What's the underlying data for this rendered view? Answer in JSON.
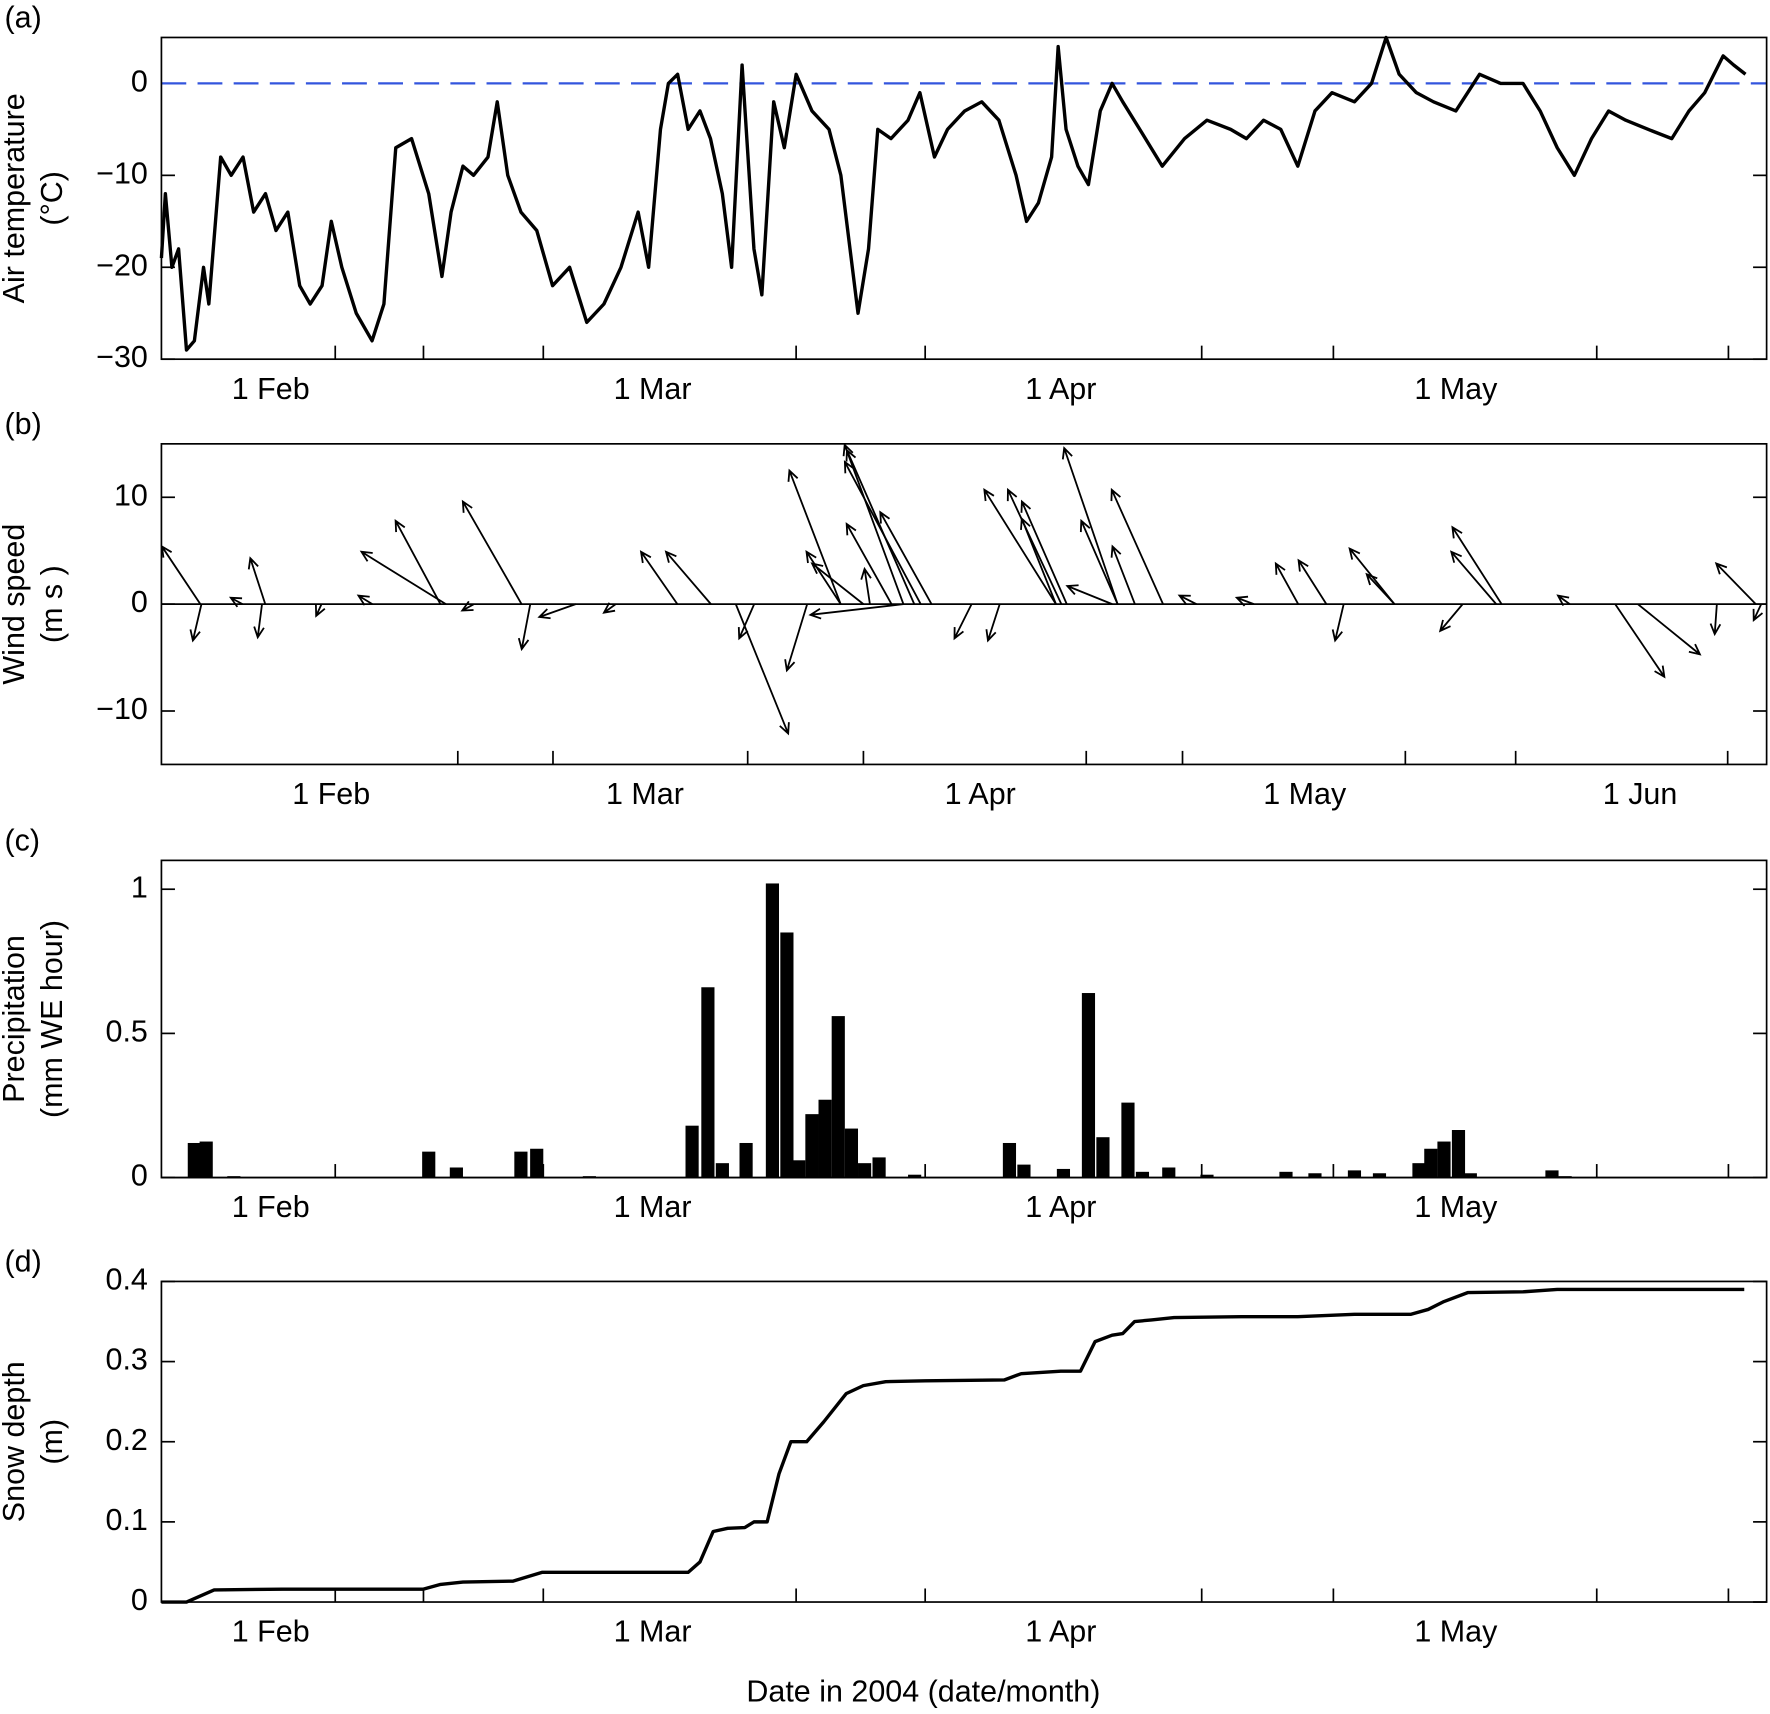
{
  "chart_data": [
    {
      "type": "line",
      "panel_label": "(a)",
      "ylabel": [
        "Air temperature",
        "(°C)"
      ],
      "x": [
        23.7,
        24.0,
        24.5,
        25.0,
        25.6,
        26.2,
        26.9,
        27.3,
        28.2,
        29.0,
        29.9,
        30.7,
        31.6,
        32.4,
        33.3,
        34.2,
        35.0,
        35.9,
        36.6,
        37.4,
        38.5,
        39.7,
        40.6,
        41.5,
        42.7,
        44.0,
        45.0,
        45.7,
        46.6,
        47.4,
        48.5,
        49.2,
        50.0,
        51.0,
        52.2,
        53.4,
        54.7,
        56.0,
        57.3,
        58.6,
        59.9,
        60.7,
        61.6,
        62.2,
        62.9,
        63.7,
        64.6,
        65.4,
        66.3,
        67.0,
        67.8,
        68.7,
        69.3,
        70.2,
        71.0,
        71.9,
        73.1,
        74.4,
        75.3,
        76.6,
        77.4,
        78.1,
        79.1,
        80.4,
        81.3,
        82.4,
        83.4,
        84.7,
        86.0,
        87.3,
        88.6,
        89.4,
        90.3,
        91.3,
        91.8,
        92.4,
        93.3,
        94.1,
        95.0,
        95.9,
        96.7,
        98.0,
        99.7,
        101.4,
        103.1,
        104.9,
        106.1,
        107.4,
        108.7,
        110.0,
        111.3,
        112.6,
        114.3,
        115.6,
        116.7,
        117.7,
        119.0,
        120.3,
        122.0,
        123.8,
        125.4,
        127.1,
        128.4,
        129.7,
        131.0,
        132.3,
        133.6,
        134.9,
        136.6,
        138.4,
        139.7,
        140.9,
        142.3,
        143.1,
        144.0
      ],
      "values": [
        -19,
        -12,
        -20,
        -18,
        -29,
        -28,
        -20,
        -24,
        -8,
        -10,
        -8,
        -14,
        -12,
        -16,
        -14,
        -22,
        -24,
        -22,
        -15,
        -20,
        -25,
        -28,
        -24,
        -7,
        -6,
        -12,
        -21,
        -14,
        -9,
        -10,
        -8,
        -2,
        -10,
        -14,
        -16,
        -22,
        -20,
        -26,
        -24,
        -20,
        -14,
        -20,
        -5,
        0,
        1,
        -5,
        -3,
        -6,
        -12,
        -20,
        2,
        -18,
        -23,
        -2,
        -7,
        1,
        -3,
        -5,
        -10,
        -25,
        -18,
        -5,
        -6,
        -4,
        -1,
        -8,
        -5,
        -3,
        -2,
        -4,
        -10,
        -15,
        -13,
        -8,
        4,
        -5,
        -9,
        -11,
        -3,
        0,
        -2,
        -5,
        -9,
        -6,
        -4,
        -5,
        -6,
        -4,
        -5,
        -9,
        -3,
        -1,
        -2,
        0,
        5,
        1,
        -1,
        -2,
        -3,
        1,
        0,
        0,
        -3,
        -7,
        -10,
        -6,
        -3,
        -4,
        -5,
        -6,
        -3,
        -1,
        3,
        2,
        1
      ],
      "color": "#000000",
      "hline": 0,
      "hline_color": "#3355dd",
      "xlim": [
        23.7,
        145.6
      ],
      "ylim": [
        -30,
        5
      ],
      "xticks": [
        {
          "value": 32,
          "label": "1 Feb"
        },
        {
          "value": 61,
          "label": "1 Mar"
        },
        {
          "value": 92,
          "label": "1 Apr"
        },
        {
          "value": 122,
          "label": "1 May"
        }
      ],
      "xminorticks": [
        36.9,
        43.6,
        52.7,
        71.9,
        81.7,
        102.7,
        112.7,
        132.7,
        142.7
      ],
      "yticks": [
        {
          "value": -30,
          "label": "−30"
        },
        {
          "value": -20,
          "label": "−20"
        },
        {
          "value": -10,
          "label": "−10"
        },
        0
      ]
    },
    {
      "type": "quiver",
      "panel_label": "(b)",
      "ylabel": [
        "Wind speed",
        "(m s )"
      ],
      "x": [
        19.9,
        25.9,
        25.6,
        20.0,
        42.6,
        42.1,
        49.6,
        50.4,
        54.6,
        64.0,
        67.1,
        69.4,
        71.1,
        76.0,
        79.1,
        79.1,
        81.2,
        84.9,
        85.9,
        86.5,
        87.5,
        83.8,
        81.8,
        84.9,
        91.2,
        93.8,
        99.0,
        99.5,
        100.0,
        99.0,
        104.7,
        108.9,
        104.7,
        106.3,
        104.2,
        121.4,
        124.0,
        130.3,
        130.3,
        140.2,
        139.7,
        125.6,
        136.6,
        150.7,
        152.8,
        160.1,
        163.7,
        164.2,
        23.8,
        31.1,
        35.8,
        45.2,
        58.3,
        112.0,
        117.3,
        146.5
      ],
      "u": [
        -3.6,
        -1.4,
        -0.4,
        -0.8,
        -7.9,
        -4.2,
        -5.5,
        -0.8,
        -3.4,
        -3.4,
        -4.2,
        4.9,
        -1.4,
        -1.9,
        -4.8,
        -3.2,
        -4.8,
        -5.5,
        -6.3,
        -7.1,
        -4.8,
        -4.2,
        -0.5,
        -8.7,
        -1.6,
        -1.1,
        -6.7,
        -5.0,
        -4.2,
        -3.2,
        -5.0,
        -4.8,
        -3.4,
        -2.1,
        -4.2,
        -2.1,
        -2.6,
        -4.2,
        -2.6,
        -4.6,
        -4.2,
        -0.8,
        -2.1,
        4.6,
        5.8,
        -0.2,
        -3.7,
        -0.7,
        -1.1,
        -0.5,
        -1.3,
        -1.1,
        -1.1,
        -1.6,
        -1.6,
        -1.1
      ],
      "v": [
        5.4,
        4.3,
        -3.1,
        -3.4,
        4.9,
        7.8,
        9.6,
        -4.2,
        -1.2,
        4.9,
        4.9,
        -12.1,
        -3.2,
        -6.2,
        12.5,
        4.9,
        3.8,
        14.9,
        14.4,
        13.3,
        8.6,
        7.5,
        3.3,
        -1.0,
        -3.2,
        -3.4,
        10.7,
        10.7,
        9.6,
        8.0,
        14.6,
        10.7,
        7.8,
        5.4,
        1.7,
        3.8,
        4.1,
        5.2,
        2.8,
        7.2,
        4.9,
        -3.4,
        -2.5,
        -6.8,
        -4.7,
        -2.8,
        3.8,
        -1.5,
        0.6,
        -1.1,
        0.8,
        -0.6,
        -0.8,
        0.8,
        0.6,
        0.8
      ],
      "color": "#000000",
      "xlim": [
        16.3,
        164.7
      ],
      "ylim": [
        -15,
        15
      ],
      "xticks": [
        {
          "value": 32,
          "label": "1 Feb"
        },
        {
          "value": 61,
          "label": "1 Mar"
        },
        {
          "value": 92,
          "label": "1 Apr"
        },
        {
          "value": 122,
          "label": "1 May"
        },
        {
          "value": 153,
          "label": "1 Jun"
        }
      ],
      "xminorticks": [
        43.7,
        52.5,
        70.5,
        81.2,
        101.8,
        110.7,
        131.3,
        141.5,
        161.1
      ],
      "yticks": [
        {
          "value": -10,
          "label": "−10"
        },
        0,
        10
      ]
    },
    {
      "type": "bar",
      "panel_label": "(c)",
      "ylabel": [
        "Precipitation",
        "(mm WE hour)"
      ],
      "x": [
        26.2,
        27.1,
        29.2,
        44.0,
        46.1,
        51.0,
        52.2,
        56.2,
        64.0,
        65.2,
        66.3,
        68.1,
        70.1,
        71.2,
        72.1,
        73.1,
        74.1,
        75.1,
        76.1,
        77.1,
        78.2,
        80.9,
        88.1,
        89.2,
        92.2,
        94.1,
        95.2,
        97.1,
        98.2,
        100.2,
        103.1,
        109.1,
        111.3,
        114.3,
        116.2,
        119.2,
        120.1,
        121.1,
        122.2,
        123.1,
        129.3,
        130.3
      ],
      "values": [
        0.12,
        0.125,
        0.005,
        0.09,
        0.035,
        0.09,
        0.1,
        0.005,
        0.18,
        0.66,
        0.05,
        0.12,
        1.02,
        0.85,
        0.06,
        0.22,
        0.27,
        0.56,
        0.17,
        0.05,
        0.07,
        0.01,
        0.12,
        0.045,
        0.03,
        0.64,
        0.14,
        0.26,
        0.02,
        0.035,
        0.01,
        0.02,
        0.015,
        0.025,
        0.015,
        0.05,
        0.1,
        0.125,
        0.165,
        0.015,
        0.025,
        0.005
      ],
      "color": "#000000",
      "xlim": [
        23.7,
        145.6
      ],
      "ylim": [
        0,
        1.1
      ],
      "xticks": [
        {
          "value": 32,
          "label": "1 Feb"
        },
        {
          "value": 61,
          "label": "1 Mar"
        },
        {
          "value": 92,
          "label": "1 Apr"
        },
        {
          "value": 122,
          "label": "1 May"
        }
      ],
      "xminorticks": [
        36.9,
        43.6,
        52.7,
        71.9,
        81.7,
        102.7,
        112.7,
        132.7,
        142.7
      ],
      "yticks": [
        0,
        0.5,
        1
      ]
    },
    {
      "type": "line",
      "panel_label": "(d)",
      "ylabel": [
        "Snow depth",
        "(m)"
      ],
      "xlabel": "Date in 2004 (date/month)",
      "x": [
        23.7,
        25.6,
        27.7,
        32.9,
        43.6,
        44.9,
        46.6,
        50.4,
        52.6,
        60.7,
        63.7,
        64.6,
        65.6,
        66.7,
        68.0,
        68.7,
        69.7,
        70.6,
        71.5,
        72.7,
        74.0,
        75.7,
        77.0,
        78.7,
        81.7,
        87.7,
        89.0,
        92.0,
        93.5,
        94.6,
        95.9,
        96.7,
        97.6,
        98.9,
        100.6,
        105.7,
        110.0,
        114.3,
        118.6,
        119.9,
        121.1,
        122.9,
        127.1,
        129.7,
        143.9
      ],
      "values": [
        0,
        0,
        0.015,
        0.016,
        0.016,
        0.022,
        0.025,
        0.026,
        0.037,
        0.037,
        0.037,
        0.05,
        0.088,
        0.092,
        0.093,
        0.1,
        0.1,
        0.16,
        0.2,
        0.2,
        0.225,
        0.26,
        0.27,
        0.275,
        0.276,
        0.277,
        0.285,
        0.288,
        0.288,
        0.325,
        0.333,
        0.335,
        0.35,
        0.352,
        0.355,
        0.356,
        0.356,
        0.359,
        0.359,
        0.365,
        0.375,
        0.386,
        0.387,
        0.39,
        0.39
      ],
      "color": "#000000",
      "xlim": [
        23.7,
        145.6
      ],
      "ylim": [
        0,
        0.4
      ],
      "xticks": [
        {
          "value": 32,
          "label": "1 Feb"
        },
        {
          "value": 61,
          "label": "1 Mar"
        },
        {
          "value": 92,
          "label": "1 Apr"
        },
        {
          "value": 122,
          "label": "1 May"
        }
      ],
      "xminorticks": [
        36.9,
        43.6,
        52.7,
        71.9,
        81.7,
        102.7,
        112.7,
        132.7,
        142.7
      ],
      "yticks": [
        0,
        0.1,
        0.2,
        0.3,
        0.4
      ]
    }
  ]
}
